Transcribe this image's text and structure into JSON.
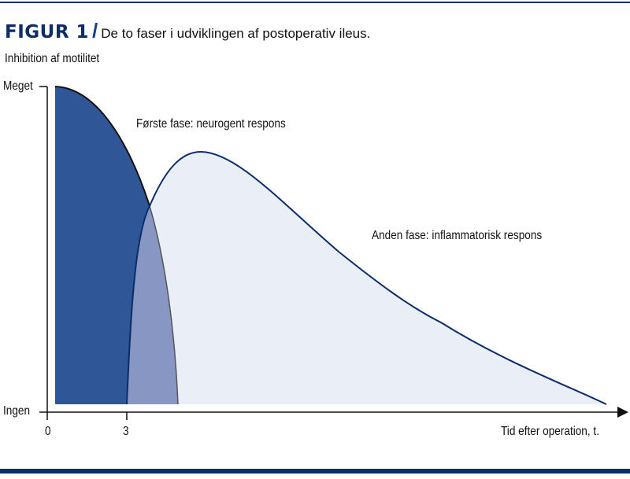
{
  "title": {
    "figure_label": "FIGUR 1",
    "separator": "/",
    "caption": "De to faser i udviklingen af postoperativ ileus."
  },
  "y_axis": {
    "label": "Inhibition af motilitet",
    "top_label": "Meget",
    "bottom_label": "Ingen"
  },
  "x_axis": {
    "label": "Tid efter operation, t.",
    "ticks": [
      "0",
      "3"
    ]
  },
  "annotations": {
    "phase1": "Første fase: neurogent respons",
    "phase2": "Anden fase: inflammatorisk respons"
  },
  "colors": {
    "navy": "#0b2e6b",
    "phase1_fill": "#2f5797",
    "overlap_fill": "#8896c4",
    "phase2_fill": "#e9eef7"
  }
}
